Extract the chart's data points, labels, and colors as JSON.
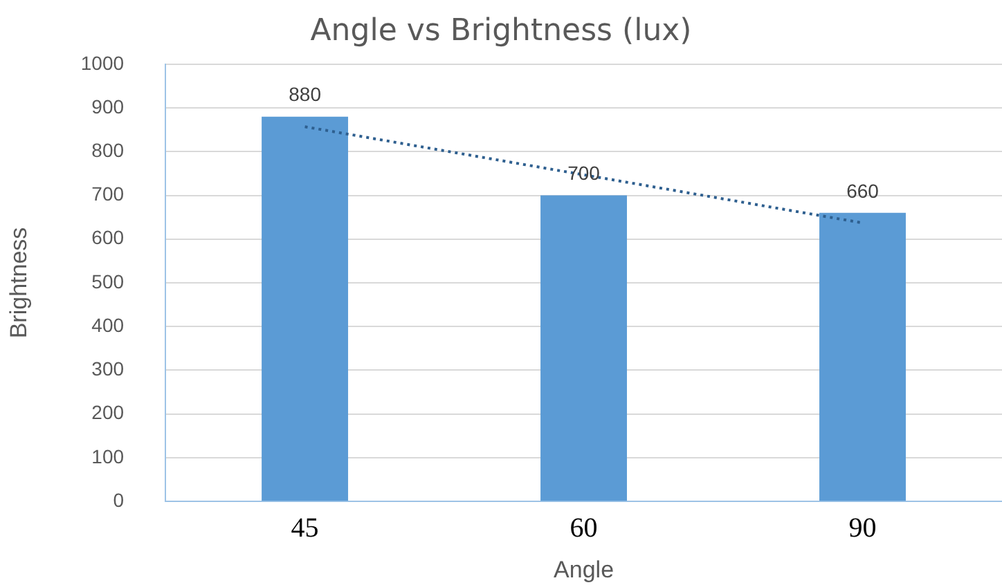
{
  "chart_data": {
    "type": "bar",
    "title": "Angle vs Brightness (lux)",
    "xlabel": "Angle",
    "ylabel": "Brightness",
    "categories": [
      "45",
      "60",
      "90"
    ],
    "series": [
      {
        "color": "#5b9bd5",
        "values": [
          880,
          700,
          660
        ],
        "value_labels": [
          "880",
          "700",
          "660"
        ]
      },
      {
        "type": "line",
        "color": "#2e5f8f",
        "line_style": "dotted",
        "marker": "none",
        "values": [
          857,
          747,
          637
        ]
      }
    ],
    "ylim": [
      0,
      1000
    ],
    "yticks": [
      0,
      100,
      200,
      300,
      400,
      500,
      600,
      700,
      800,
      900,
      1000
    ],
    "grid": "y",
    "legend": false
  }
}
